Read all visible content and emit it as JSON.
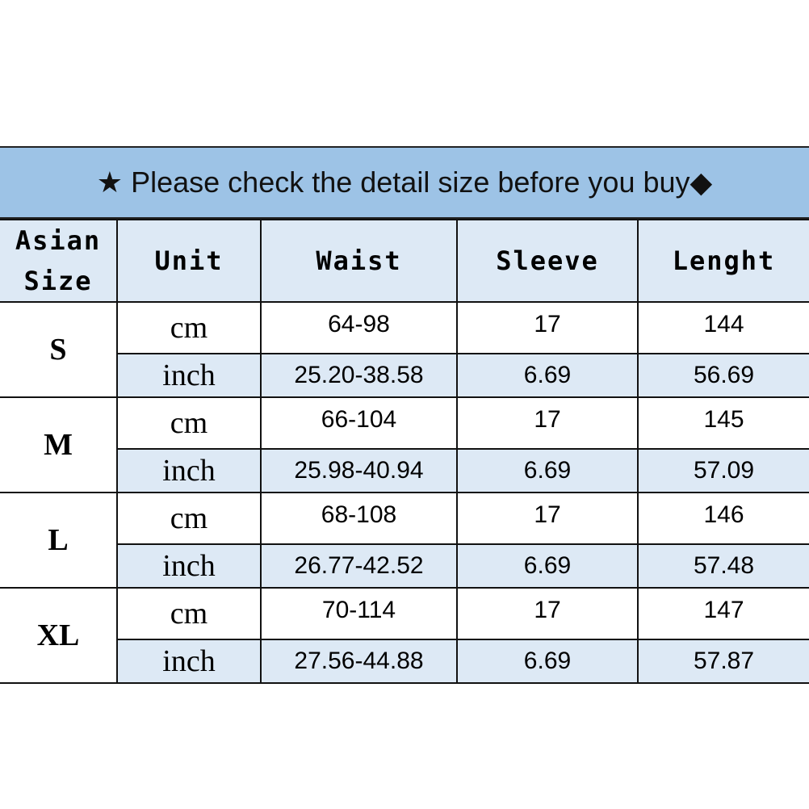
{
  "banner": {
    "icon_left": "★",
    "text": "Please check the detail size before you buy",
    "icon_right": "◆"
  },
  "headers": [
    "Asian Size",
    "Unit",
    "Waist",
    "Sleeve",
    "Lenght"
  ],
  "rows": [
    {
      "size": "S",
      "cm": {
        "unit": "cm",
        "waist": "64-98",
        "sleeve": "17",
        "length": "144"
      },
      "inch": {
        "unit": "inch",
        "waist": "25.20-38.58",
        "sleeve": "6.69",
        "length": "56.69"
      }
    },
    {
      "size": "M",
      "cm": {
        "unit": "cm",
        "waist": "66-104",
        "sleeve": "17",
        "length": "145"
      },
      "inch": {
        "unit": "inch",
        "waist": "25.98-40.94",
        "sleeve": "6.69",
        "length": "57.09"
      }
    },
    {
      "size": "L",
      "cm": {
        "unit": "cm",
        "waist": "68-108",
        "sleeve": "17",
        "length": "146"
      },
      "inch": {
        "unit": "inch",
        "waist": "26.77-42.52",
        "sleeve": "6.69",
        "length": "57.48"
      }
    },
    {
      "size": "XL",
      "cm": {
        "unit": "cm",
        "waist": "70-114",
        "sleeve": "17",
        "length": "147"
      },
      "inch": {
        "unit": "inch",
        "waist": "27.56-44.88",
        "sleeve": "6.69",
        "length": "57.87"
      }
    }
  ],
  "colors": {
    "banner": "#9dc3e6",
    "alt_row": "#dde9f5",
    "border": "#111111"
  }
}
